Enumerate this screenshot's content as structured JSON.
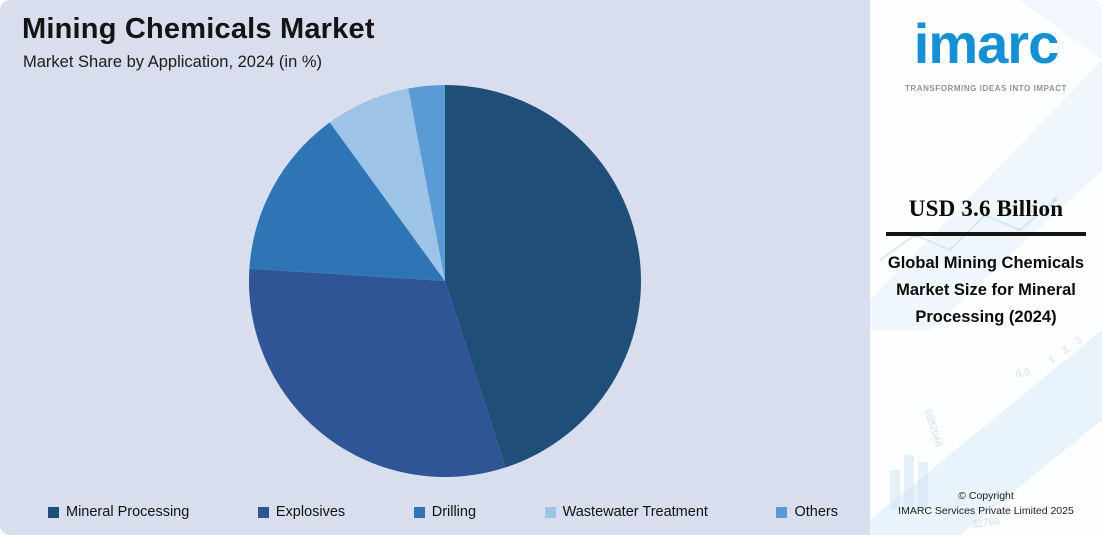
{
  "header": {
    "title": "Mining Chemicals Market",
    "subtitle": "Market Share by Application, 2024 (in %)"
  },
  "chart_data": {
    "type": "pie",
    "title": "Mining Chemicals Market",
    "subtitle": "Market Share by Application, 2024 (in %)",
    "labels": [
      "Mineral Processing",
      "Explosives",
      "Drilling",
      "Wastewater Treatment",
      "Others"
    ],
    "values": [
      45,
      31,
      14,
      7,
      3
    ],
    "unit": "%",
    "colors": [
      "#1f4e79",
      "#2f5597",
      "#2e75b6",
      "#9dc3e6",
      "#5b9bd5"
    ],
    "start_angle_deg": -90,
    "direction": "clockwise",
    "legend_position": "bottom"
  },
  "sidebar": {
    "logo_text": "imarc",
    "tagline": "TRANSFORMING IDEAS INTO IMPACT",
    "stat": {
      "value": "USD 3.6 Billion",
      "label": "Global Mining Chemicals Market Size for Mineral Processing (2024)"
    },
    "copyright": {
      "line1": "© Copyright",
      "line2": "IMARC Services Private Limited 2025"
    },
    "decorative_numbers": [
      "0.0",
      "1 2 3",
      "6982048",
      "32768"
    ]
  },
  "colors": {
    "background": "#d9deee",
    "accent_blue": "#1590d2",
    "title_text": "#141414"
  }
}
